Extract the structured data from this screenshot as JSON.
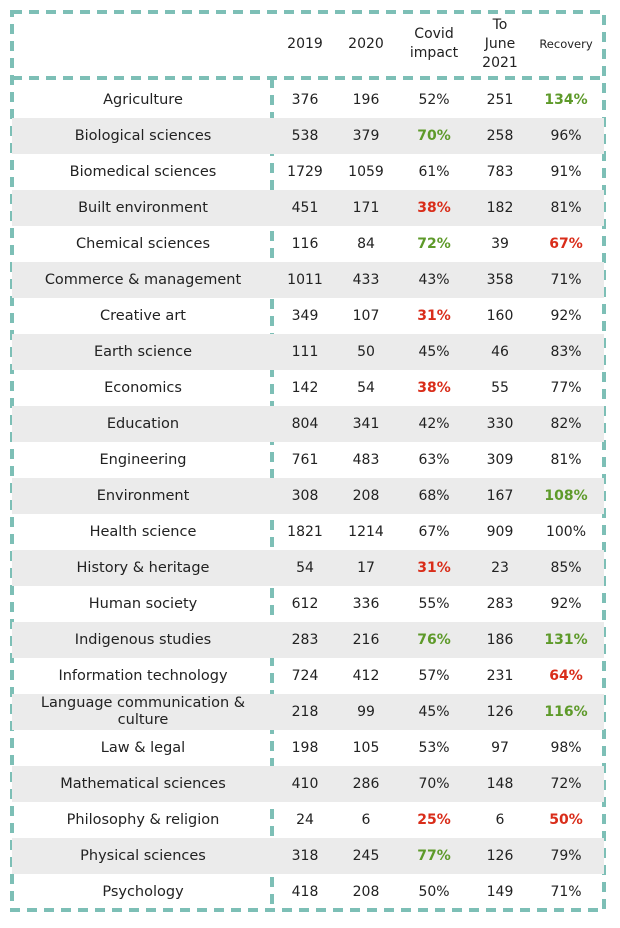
{
  "colors": {
    "border": "#7dbfb6",
    "row_shade": "#ebebeb",
    "text": "#222222",
    "green_highlight": "#5e9a2a",
    "red_highlight": "#d92d1a"
  },
  "chart_data": {
    "type": "table",
    "columns": [
      "",
      "2019",
      "2020",
      "Covid\nimpact",
      "To\nJune\n2021",
      "Recovery"
    ],
    "rows": [
      {
        "subject": "Agriculture",
        "y2019": "376",
        "y2020": "196",
        "covid_impact": "52%",
        "to_june_2021": "251",
        "recovery": "134%",
        "impact_highlight": "",
        "recovery_highlight": "green"
      },
      {
        "subject": "Biological sciences",
        "y2019": "538",
        "y2020": "379",
        "covid_impact": "70%",
        "to_june_2021": "258",
        "recovery": "96%",
        "impact_highlight": "green",
        "recovery_highlight": ""
      },
      {
        "subject": "Biomedical sciences",
        "y2019": "1729",
        "y2020": "1059",
        "covid_impact": "61%",
        "to_june_2021": "783",
        "recovery": "91%",
        "impact_highlight": "",
        "recovery_highlight": ""
      },
      {
        "subject": "Built environment",
        "y2019": "451",
        "y2020": "171",
        "covid_impact": "38%",
        "to_june_2021": "182",
        "recovery": "81%",
        "impact_highlight": "red",
        "recovery_highlight": ""
      },
      {
        "subject": "Chemical sciences",
        "y2019": "116",
        "y2020": "84",
        "covid_impact": "72%",
        "to_june_2021": "39",
        "recovery": "67%",
        "impact_highlight": "green",
        "recovery_highlight": "red"
      },
      {
        "subject": "Commerce & management",
        "y2019": "1011",
        "y2020": "433",
        "covid_impact": "43%",
        "to_june_2021": "358",
        "recovery": "71%",
        "impact_highlight": "",
        "recovery_highlight": ""
      },
      {
        "subject": "Creative art",
        "y2019": "349",
        "y2020": "107",
        "covid_impact": "31%",
        "to_june_2021": "160",
        "recovery": "92%",
        "impact_highlight": "red",
        "recovery_highlight": ""
      },
      {
        "subject": "Earth science",
        "y2019": "111",
        "y2020": "50",
        "covid_impact": "45%",
        "to_june_2021": "46",
        "recovery": "83%",
        "impact_highlight": "",
        "recovery_highlight": ""
      },
      {
        "subject": "Economics",
        "y2019": "142",
        "y2020": "54",
        "covid_impact": "38%",
        "to_june_2021": "55",
        "recovery": "77%",
        "impact_highlight": "red",
        "recovery_highlight": ""
      },
      {
        "subject": "Education",
        "y2019": "804",
        "y2020": "341",
        "covid_impact": "42%",
        "to_june_2021": "330",
        "recovery": "82%",
        "impact_highlight": "",
        "recovery_highlight": ""
      },
      {
        "subject": "Engineering",
        "y2019": "761",
        "y2020": "483",
        "covid_impact": "63%",
        "to_june_2021": "309",
        "recovery": "81%",
        "impact_highlight": "",
        "recovery_highlight": ""
      },
      {
        "subject": "Environment",
        "y2019": "308",
        "y2020": "208",
        "covid_impact": "68%",
        "to_june_2021": "167",
        "recovery": "108%",
        "impact_highlight": "",
        "recovery_highlight": "green"
      },
      {
        "subject": "Health science",
        "y2019": "1821",
        "y2020": "1214",
        "covid_impact": "67%",
        "to_june_2021": "909",
        "recovery": "100%",
        "impact_highlight": "",
        "recovery_highlight": ""
      },
      {
        "subject": "History & heritage",
        "y2019": "54",
        "y2020": "17",
        "covid_impact": "31%",
        "to_june_2021": "23",
        "recovery": "85%",
        "impact_highlight": "red",
        "recovery_highlight": ""
      },
      {
        "subject": "Human society",
        "y2019": "612",
        "y2020": "336",
        "covid_impact": "55%",
        "to_june_2021": "283",
        "recovery": "92%",
        "impact_highlight": "",
        "recovery_highlight": ""
      },
      {
        "subject": "Indigenous studies",
        "y2019": "283",
        "y2020": "216",
        "covid_impact": "76%",
        "to_june_2021": "186",
        "recovery": "131%",
        "impact_highlight": "green",
        "recovery_highlight": "green"
      },
      {
        "subject": "Information technology",
        "y2019": "724",
        "y2020": "412",
        "covid_impact": "57%",
        "to_june_2021": "231",
        "recovery": "64%",
        "impact_highlight": "",
        "recovery_highlight": "red"
      },
      {
        "subject": "Language communication & culture",
        "y2019": "218",
        "y2020": "99",
        "covid_impact": "45%",
        "to_june_2021": "126",
        "recovery": "116%",
        "impact_highlight": "",
        "recovery_highlight": "green"
      },
      {
        "subject": "Law & legal",
        "y2019": "198",
        "y2020": "105",
        "covid_impact": "53%",
        "to_june_2021": "97",
        "recovery": "98%",
        "impact_highlight": "",
        "recovery_highlight": ""
      },
      {
        "subject": "Mathematical sciences",
        "y2019": "410",
        "y2020": "286",
        "covid_impact": "70%",
        "to_june_2021": "148",
        "recovery": "72%",
        "impact_highlight": "",
        "recovery_highlight": ""
      },
      {
        "subject": "Philosophy & religion",
        "y2019": "24",
        "y2020": "6",
        "covid_impact": "25%",
        "to_june_2021": "6",
        "recovery": "50%",
        "impact_highlight": "red",
        "recovery_highlight": "red"
      },
      {
        "subject": "Physical sciences",
        "y2019": "318",
        "y2020": "245",
        "covid_impact": "77%",
        "to_june_2021": "126",
        "recovery": "79%",
        "impact_highlight": "green",
        "recovery_highlight": ""
      },
      {
        "subject": "Psychology",
        "y2019": "418",
        "y2020": "208",
        "covid_impact": "50%",
        "to_june_2021": "149",
        "recovery": "71%",
        "impact_highlight": "",
        "recovery_highlight": ""
      }
    ]
  }
}
